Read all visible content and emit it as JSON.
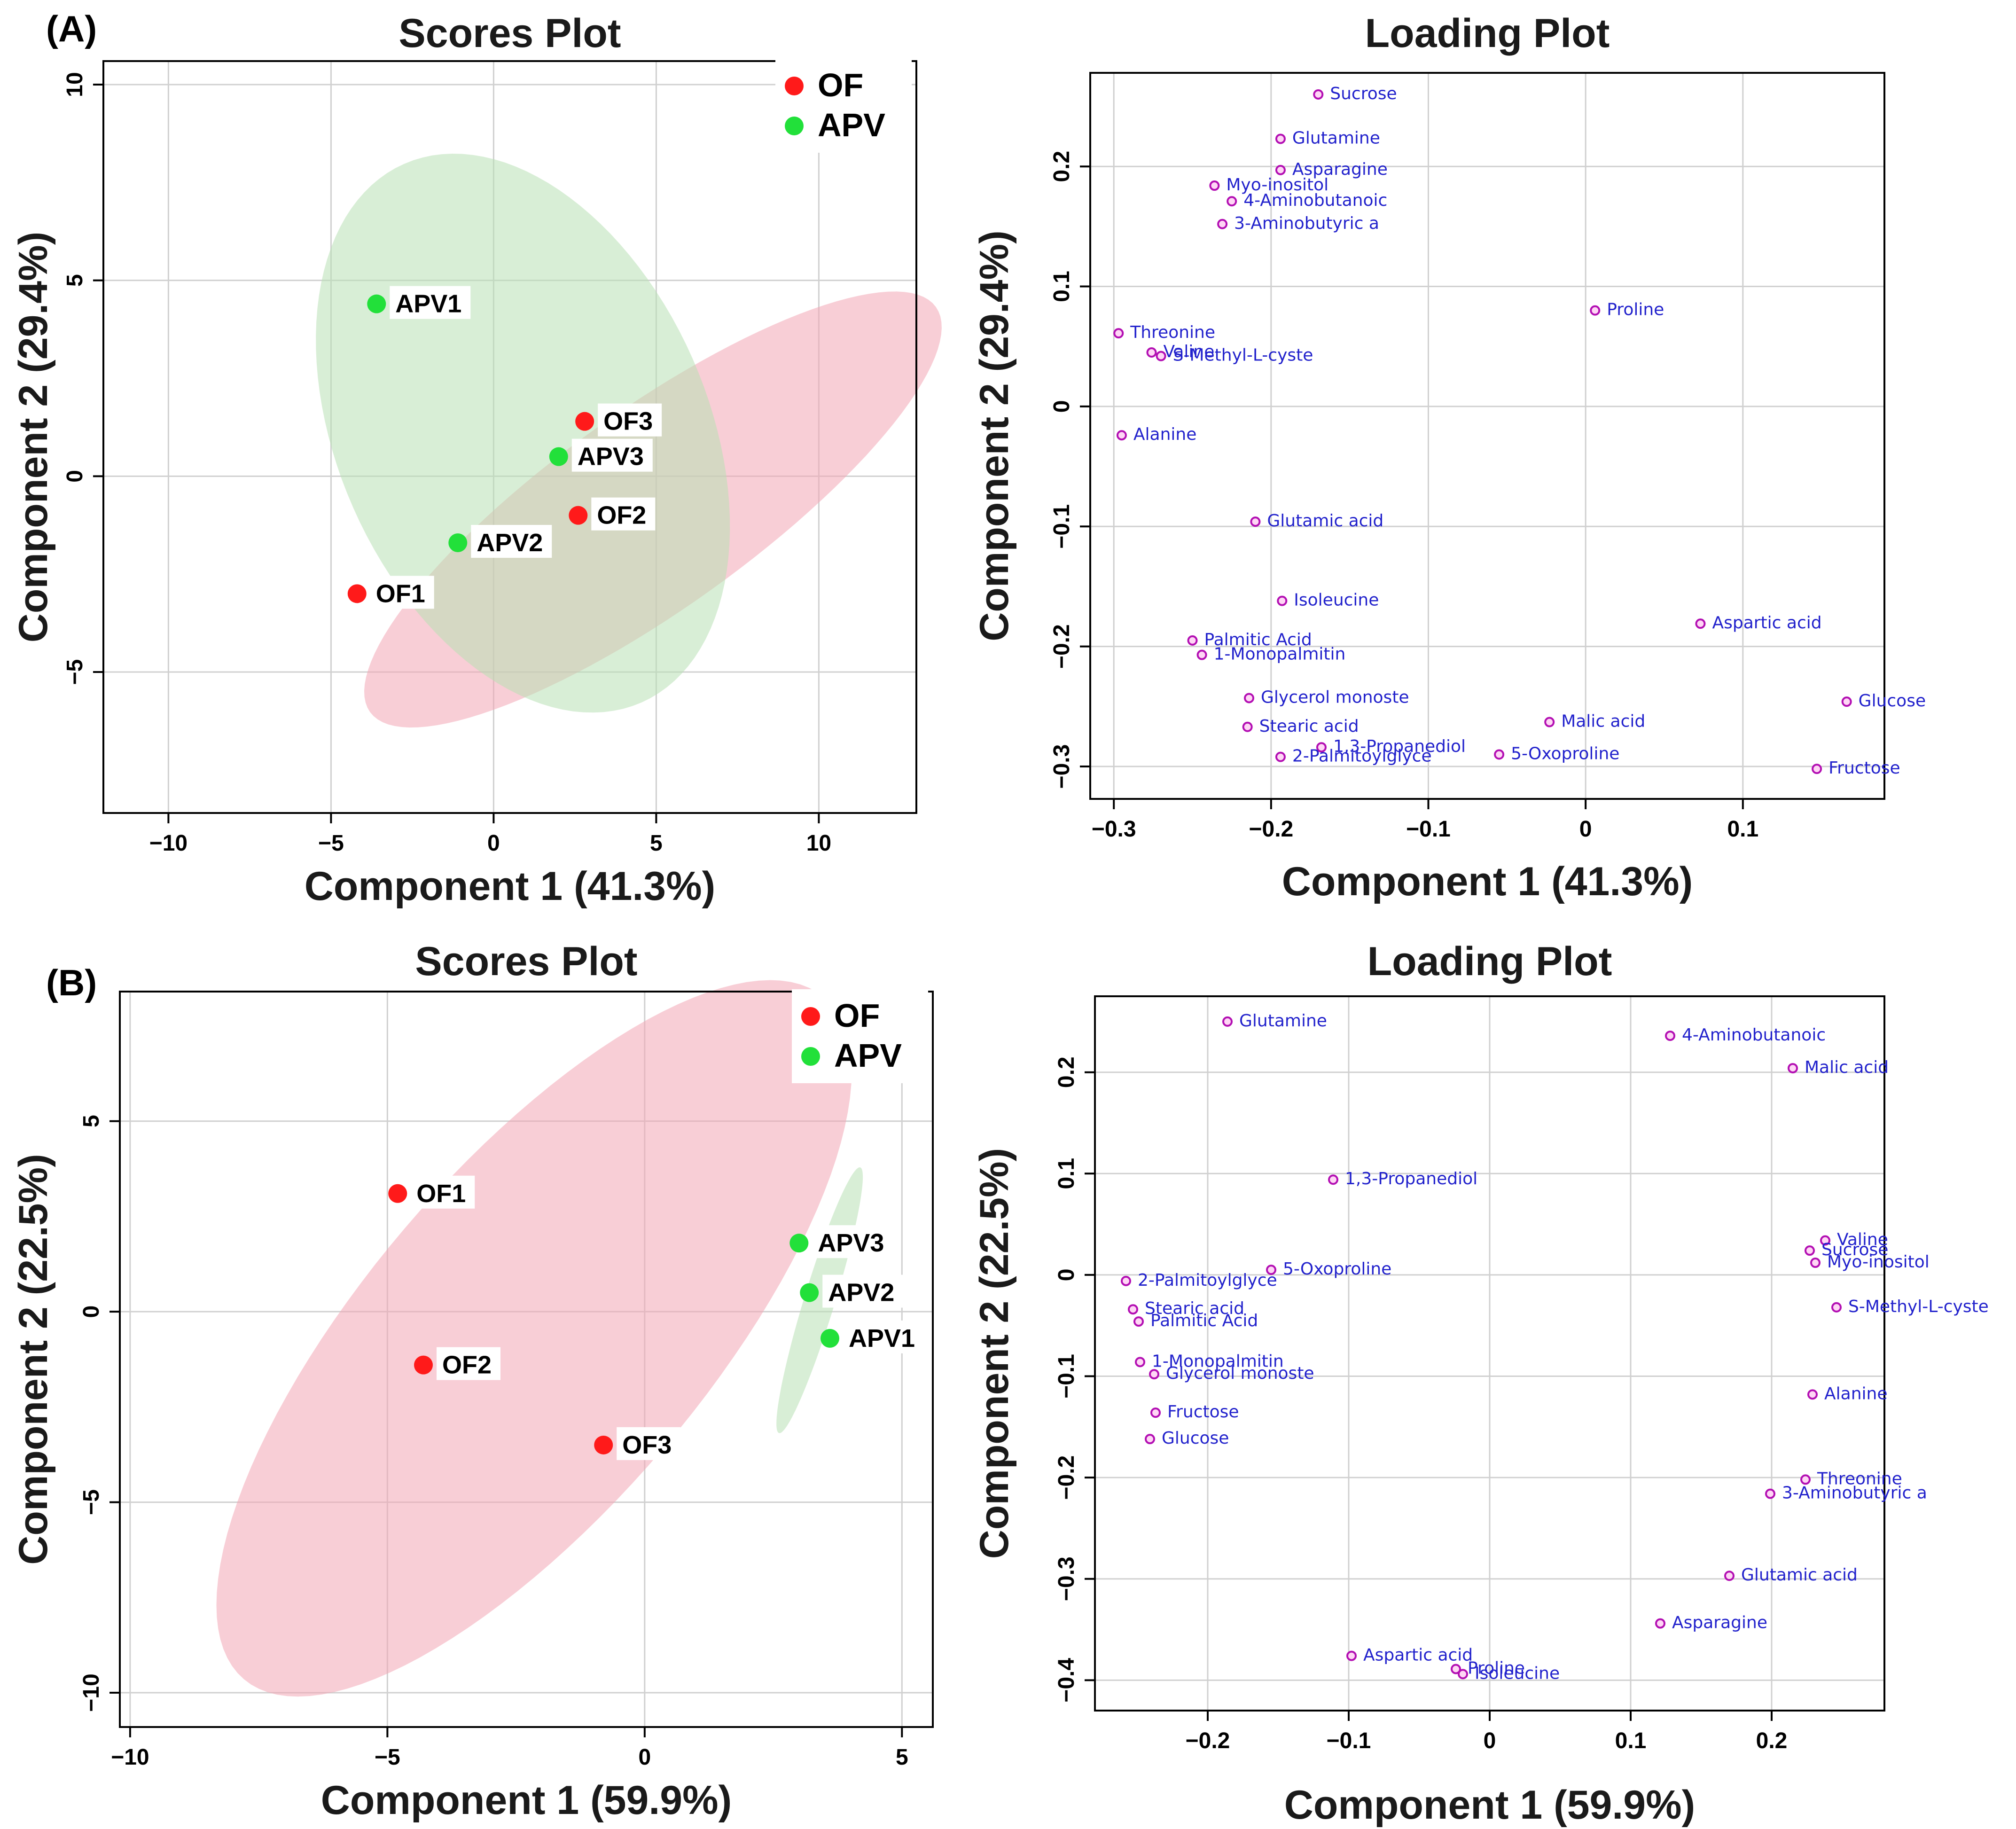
{
  "panels": [
    {
      "letter": "(A)",
      "scores": {
        "title": "Scores Plot",
        "xlabel": "Component 1 (41.3%)",
        "ylabel": "Component 2 (29.4%)",
        "xlim": [
          -12,
          13
        ],
        "ylim": [
          -8.6,
          10.6
        ],
        "xticks": [
          -10,
          -5,
          0,
          5,
          10
        ],
        "yticks": [
          -5,
          0,
          5,
          10
        ],
        "legend": [
          {
            "label": "OF",
            "color": "#ff1a1a"
          },
          {
            "label": "APV",
            "color": "#22e03a"
          }
        ],
        "groups": [
          {
            "name": "OF",
            "color": "#ff1a1a",
            "ellipse_fill": "#f2a6b4",
            "points": [
              {
                "label": "OF1",
                "x": -4.2,
                "y": -3.0
              },
              {
                "label": "OF2",
                "x": 2.6,
                "y": -1.0
              },
              {
                "label": "OF3",
                "x": 2.8,
                "y": 1.4
              }
            ]
          },
          {
            "name": "APV",
            "color": "#22e03a",
            "ellipse_fill": "#b8e0b4",
            "points": [
              {
                "label": "APV1",
                "x": -3.6,
                "y": 4.4
              },
              {
                "label": "APV2",
                "x": -1.1,
                "y": -1.7
              },
              {
                "label": "APV3",
                "x": 2.0,
                "y": 0.5
              }
            ]
          }
        ]
      },
      "loadings": {
        "title": "Loading Plot",
        "xlabel": "Component 1 (41.3%)",
        "ylabel": "Component 2 (29.4%)",
        "xlim": [
          -0.315,
          0.19
        ],
        "ylim": [
          -0.327,
          0.278
        ],
        "xticks": [
          -0.3,
          -0.2,
          -0.1,
          0,
          0.1
        ],
        "xtick_labels": [
          "−0.3",
          "−0.2",
          "−0.1",
          "0",
          "0.1"
        ],
        "yticks": [
          -0.3,
          -0.2,
          -0.1,
          0,
          0.1,
          0.2
        ],
        "ytick_labels": [
          "−0.3",
          "−0.2",
          "−0.1",
          "0",
          "0.1",
          "0.2"
        ],
        "points": [
          {
            "label": "Sucrose",
            "x": -0.17,
            "y": 0.26
          },
          {
            "label": "Glutamine",
            "x": -0.194,
            "y": 0.223
          },
          {
            "label": "Asparagine",
            "x": -0.194,
            "y": 0.197
          },
          {
            "label": "Myo-inositol",
            "x": -0.236,
            "y": 0.184
          },
          {
            "label": "4-Aminobutanoic",
            "x": -0.225,
            "y": 0.171
          },
          {
            "label": "3-Aminobutyric a",
            "x": -0.231,
            "y": 0.152
          },
          {
            "label": "Proline",
            "x": 0.006,
            "y": 0.08
          },
          {
            "label": "Threonine",
            "x": -0.297,
            "y": 0.061
          },
          {
            "label": "Valine",
            "x": -0.276,
            "y": 0.045
          },
          {
            "label": "S-Methyl-L-cyste",
            "x": -0.27,
            "y": 0.042
          },
          {
            "label": "Alanine",
            "x": -0.295,
            "y": -0.024
          },
          {
            "label": "Glutamic acid",
            "x": -0.21,
            "y": -0.096
          },
          {
            "label": "Isoleucine",
            "x": -0.193,
            "y": -0.162
          },
          {
            "label": "Aspartic acid",
            "x": 0.073,
            "y": -0.181
          },
          {
            "label": "Palmitic Acid",
            "x": -0.25,
            "y": -0.195
          },
          {
            "label": "1-Monopalmitin",
            "x": -0.244,
            "y": -0.207
          },
          {
            "label": "Glycerol monoste",
            "x": -0.214,
            "y": -0.243
          },
          {
            "label": "Glucose",
            "x": 0.166,
            "y": -0.246
          },
          {
            "label": "Malic acid",
            "x": -0.023,
            "y": -0.263
          },
          {
            "label": "Stearic acid",
            "x": -0.215,
            "y": -0.267
          },
          {
            "label": "1,3-Propanediol",
            "x": -0.168,
            "y": -0.284
          },
          {
            "label": "2-Palmitoylglyce",
            "x": -0.194,
            "y": -0.292
          },
          {
            "label": "5-Oxoproline",
            "x": -0.055,
            "y": -0.29
          },
          {
            "label": "Fructose",
            "x": 0.147,
            "y": -0.302
          }
        ]
      }
    },
    {
      "letter": "(B)",
      "scores": {
        "title": "Scores Plot",
        "xlabel": "Component 1 (59.9%)",
        "ylabel": "Component 2 (22.5%)",
        "xlim": [
          -10.2,
          5.6
        ],
        "ylim": [
          -10.9,
          8.4
        ],
        "xticks": [
          -10,
          -5,
          0,
          5
        ],
        "yticks": [
          -10,
          -5,
          0,
          5
        ],
        "legend": [
          {
            "label": "OF",
            "color": "#ff1a1a"
          },
          {
            "label": "APV",
            "color": "#22e03a"
          }
        ],
        "groups": [
          {
            "name": "OF",
            "color": "#ff1a1a",
            "ellipse_fill": "#f2a6b4",
            "points": [
              {
                "label": "OF1",
                "x": -4.8,
                "y": 3.1
              },
              {
                "label": "OF2",
                "x": -4.3,
                "y": -1.4
              },
              {
                "label": "OF3",
                "x": -0.8,
                "y": -3.5
              }
            ]
          },
          {
            "name": "APV",
            "color": "#22e03a",
            "ellipse_fill": "#b8e0b4",
            "points": [
              {
                "label": "APV1",
                "x": 3.6,
                "y": -0.7
              },
              {
                "label": "APV2",
                "x": 3.2,
                "y": 0.5
              },
              {
                "label": "APV3",
                "x": 3.0,
                "y": 1.8
              }
            ]
          }
        ]
      },
      "loadings": {
        "title": "Loading Plot",
        "xlabel": "Component 1 (59.9%)",
        "ylabel": "Component 2 (22.5%)",
        "xlim": [
          -0.28,
          0.28
        ],
        "ylim": [
          -0.43,
          0.275
        ],
        "xticks": [
          -0.2,
          -0.1,
          0,
          0.1,
          0.2
        ],
        "xtick_labels": [
          "−0.2",
          "−0.1",
          "0",
          "0.1",
          "0.2"
        ],
        "yticks": [
          -0.4,
          -0.3,
          -0.2,
          -0.1,
          0,
          0.1,
          0.2
        ],
        "ytick_labels": [
          "−0.4",
          "−0.3",
          "−0.2",
          "−0.1",
          "0",
          "0.1",
          "0.2"
        ],
        "points": [
          {
            "label": "Glutamine",
            "x": -0.186,
            "y": 0.25
          },
          {
            "label": "4-Aminobutanoic",
            "x": 0.128,
            "y": 0.236
          },
          {
            "label": "Malic acid",
            "x": 0.215,
            "y": 0.204
          },
          {
            "label": "1,3-Propanediol",
            "x": -0.111,
            "y": 0.094
          },
          {
            "label": "Valine",
            "x": 0.238,
            "y": 0.034
          },
          {
            "label": "Sucrose",
            "x": 0.227,
            "y": 0.024
          },
          {
            "label": "Myo-inositol",
            "x": 0.231,
            "y": 0.012
          },
          {
            "label": "5-Oxoproline",
            "x": -0.155,
            "y": 0.005
          },
          {
            "label": "2-Palmitoylglyce",
            "x": -0.258,
            "y": -0.006
          },
          {
            "label": "Stearic acid",
            "x": -0.253,
            "y": -0.034
          },
          {
            "label": "S-Methyl-L-cyste",
            "x": 0.246,
            "y": -0.032
          },
          {
            "label": "Palmitic Acid",
            "x": -0.249,
            "y": -0.046
          },
          {
            "label": "1-Monopalmitin",
            "x": -0.248,
            "y": -0.086
          },
          {
            "label": "Glycerol monoste",
            "x": -0.238,
            "y": -0.098
          },
          {
            "label": "Alanine",
            "x": 0.229,
            "y": -0.118
          },
          {
            "label": "Fructose",
            "x": -0.237,
            "y": -0.136
          },
          {
            "label": "Glucose",
            "x": -0.241,
            "y": -0.162
          },
          {
            "label": "Threonine",
            "x": 0.224,
            "y": -0.202
          },
          {
            "label": "3-Aminobutyric a",
            "x": 0.199,
            "y": -0.216
          },
          {
            "label": "Glutamic acid",
            "x": 0.17,
            "y": -0.297
          },
          {
            "label": "Asparagine",
            "x": 0.121,
            "y": -0.344
          },
          {
            "label": "Aspartic acid",
            "x": -0.098,
            "y": -0.376
          },
          {
            "label": "Proline",
            "x": -0.024,
            "y": -0.389
          },
          {
            "label": "Isoleucine",
            "x": -0.019,
            "y": -0.394
          }
        ]
      }
    }
  ]
}
